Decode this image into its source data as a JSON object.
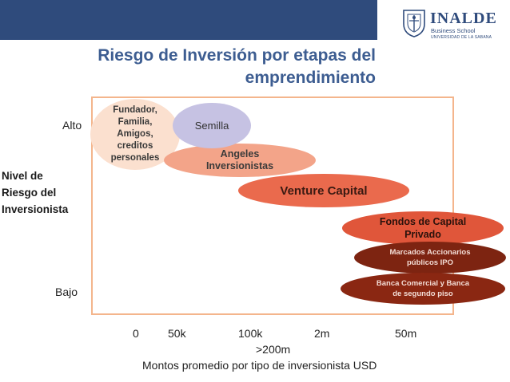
{
  "header": {
    "brand_name": "INALDE",
    "brand_line1": "Business School",
    "brand_line2": "UNIVERSIDAD DE LA SABANA",
    "bar_color": "#2f4b7c",
    "brand_color": "#2f4b7c"
  },
  "slide": {
    "title": "Riesgo de Inversión por etapas del\nemprendimiento",
    "title_color": "#3d5d91"
  },
  "diagram": {
    "y_title": "Nivel de\nRiesgo del\nInversionista",
    "y_high": "Alto",
    "y_low": "Bajo",
    "frame_color": "#f4b58c",
    "stages": {
      "founders": "Fundador,\nFamilia,\nAmigos,\ncreditos\npersonales",
      "seed": "Semilla",
      "angels": "Angeles\nInversionistas",
      "venture": "Venture Capital",
      "private_equity": "Fondos de Capital\nPrivado",
      "public_markets": "Marcados Accionarios\npúblicos IPO",
      "banks": "Banca Comercial y Banca\nde segundo piso"
    },
    "stage_colors": {
      "founders": "#fbe0cf",
      "seed": "#c6c2e3",
      "angels": "#f3a489",
      "venture": "#ea6a4d",
      "private_equity": "#e0563a",
      "public_markets": "#7d2411",
      "banks": "#8a2712"
    },
    "x_ticks": [
      "0",
      "50k",
      "100k",
      "2m",
      "50m"
    ],
    "x_extra": ">200m",
    "x_title": "Montos promedio por tipo de inversionista USD"
  }
}
